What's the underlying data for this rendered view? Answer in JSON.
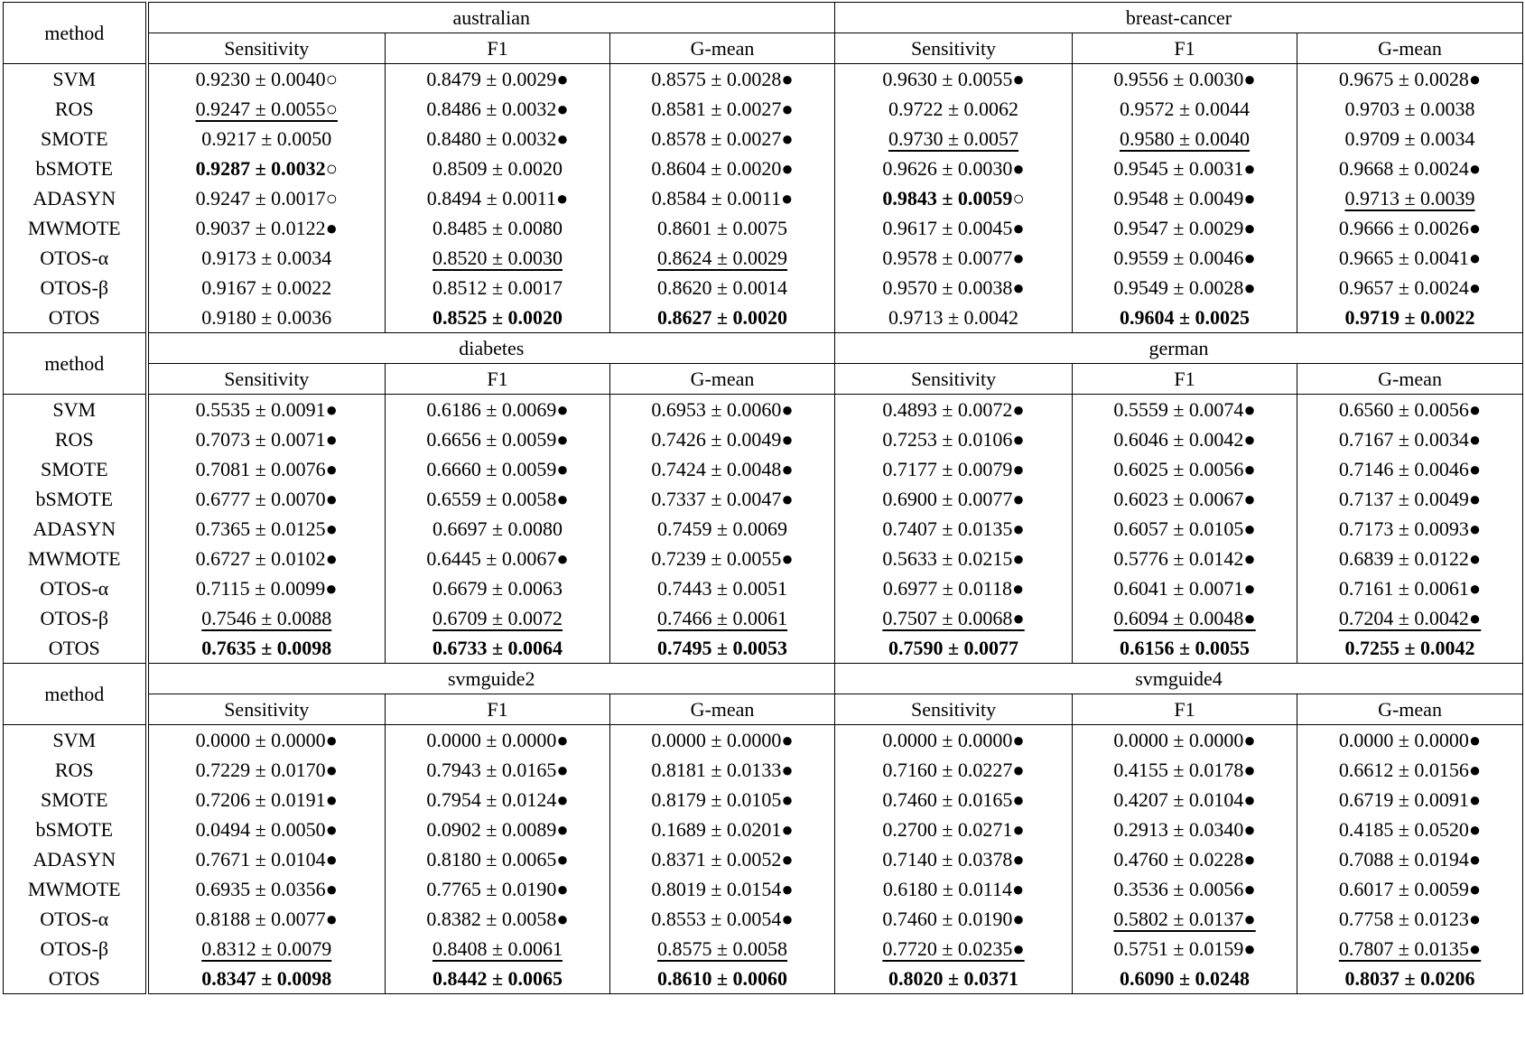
{
  "blocks": [
    {
      "method_header": "method",
      "datasets": [
        "australian",
        "breast-cancer"
      ],
      "metrics": [
        "Sensitivity",
        "F1",
        "G-mean",
        "Sensitivity",
        "F1",
        "G-mean"
      ],
      "rows": [
        {
          "method": "SVM",
          "cells": [
            "0.9230 ± 0.0040○",
            "0.8479 ± 0.0029●",
            "0.8575 ± 0.0028●",
            "0.9630 ± 0.0055●",
            "0.9556 ± 0.0030●",
            "0.9675 ± 0.0028●"
          ]
        },
        {
          "method": "ROS",
          "cells": [
            {
              "text": "0.9247 ± 0.0055○",
              "style": "underline"
            },
            "0.8486 ± 0.0032●",
            "0.8581 ± 0.0027●",
            "0.9722 ± 0.0062",
            "0.9572 ± 0.0044",
            "0.9703 ± 0.0038"
          ]
        },
        {
          "method": "SMOTE",
          "cells": [
            "0.9217 ± 0.0050",
            "0.8480 ± 0.0032●",
            "0.8578 ± 0.0027●",
            {
              "text": "0.9730 ± 0.0057",
              "style": "underline"
            },
            {
              "text": "0.9580 ± 0.0040",
              "style": "underline"
            },
            "0.9709 ± 0.0034"
          ]
        },
        {
          "method": "bSMOTE",
          "cells": [
            {
              "text": "0.9287 ± 0.0032○",
              "style": "bold"
            },
            "0.8509 ± 0.0020",
            "0.8604 ± 0.0020●",
            "0.9626 ± 0.0030●",
            "0.9545 ± 0.0031●",
            "0.9668 ± 0.0024●"
          ]
        },
        {
          "method": "ADASYN",
          "cells": [
            "0.9247 ± 0.0017○",
            "0.8494 ± 0.0011●",
            "0.8584 ± 0.0011●",
            {
              "text": "0.9843 ± 0.0059○",
              "style": "bold"
            },
            "0.9548 ± 0.0049●",
            {
              "text": "0.9713 ± 0.0039",
              "style": "underline"
            }
          ]
        },
        {
          "method": "MWMOTE",
          "cells": [
            "0.9037 ± 0.0122●",
            "0.8485 ± 0.0080",
            "0.8601 ± 0.0075",
            "0.9617 ± 0.0045●",
            "0.9547 ± 0.0029●",
            "0.9666 ± 0.0026●"
          ]
        },
        {
          "method": "OTOS-α",
          "cells": [
            "0.9173 ± 0.0034",
            {
              "text": "0.8520 ± 0.0030",
              "style": "underline"
            },
            {
              "text": "0.8624 ± 0.0029",
              "style": "underline"
            },
            "0.9578 ± 0.0077●",
            "0.9559 ± 0.0046●",
            "0.9665 ± 0.0041●"
          ]
        },
        {
          "method": "OTOS-β",
          "cells": [
            "0.9167 ± 0.0022",
            "0.8512 ± 0.0017",
            "0.8620 ± 0.0014",
            "0.9570 ± 0.0038●",
            "0.9549 ± 0.0028●",
            "0.9657 ± 0.0024●"
          ]
        },
        {
          "method": "OTOS",
          "cells": [
            "0.9180 ± 0.0036",
            {
              "text": "0.8525 ± 0.0020",
              "style": "bold"
            },
            {
              "text": "0.8627 ± 0.0020",
              "style": "bold"
            },
            "0.9713 ± 0.0042",
            {
              "text": "0.9604 ± 0.0025",
              "style": "bold"
            },
            {
              "text": "0.9719 ± 0.0022",
              "style": "bold"
            }
          ]
        }
      ]
    },
    {
      "method_header": "method",
      "datasets": [
        "diabetes",
        "german"
      ],
      "metrics": [
        "Sensitivity",
        "F1",
        "G-mean",
        "Sensitivity",
        "F1",
        "G-mean"
      ],
      "rows": [
        {
          "method": "SVM",
          "cells": [
            "0.5535 ± 0.0091●",
            "0.6186 ± 0.0069●",
            "0.6953 ± 0.0060●",
            "0.4893 ± 0.0072●",
            "0.5559 ± 0.0074●",
            "0.6560 ± 0.0056●"
          ]
        },
        {
          "method": "ROS",
          "cells": [
            "0.7073 ± 0.0071●",
            "0.6656 ± 0.0059●",
            "0.7426 ± 0.0049●",
            "0.7253 ± 0.0106●",
            "0.6046 ± 0.0042●",
            "0.7167 ± 0.0034●"
          ]
        },
        {
          "method": "SMOTE",
          "cells": [
            "0.7081 ± 0.0076●",
            "0.6660 ± 0.0059●",
            "0.7424 ± 0.0048●",
            "0.7177 ± 0.0079●",
            "0.6025 ± 0.0056●",
            "0.7146 ± 0.0046●"
          ]
        },
        {
          "method": "bSMOTE",
          "cells": [
            "0.6777 ± 0.0070●",
            "0.6559 ± 0.0058●",
            "0.7337 ± 0.0047●",
            "0.6900 ± 0.0077●",
            "0.6023 ± 0.0067●",
            "0.7137 ± 0.0049●"
          ]
        },
        {
          "method": "ADASYN",
          "cells": [
            "0.7365 ± 0.0125●",
            "0.6697 ± 0.0080",
            "0.7459 ± 0.0069",
            "0.7407 ± 0.0135●",
            "0.6057 ± 0.0105●",
            "0.7173 ± 0.0093●"
          ]
        },
        {
          "method": "MWMOTE",
          "cells": [
            "0.6727 ± 0.0102●",
            "0.6445 ± 0.0067●",
            "0.7239 ± 0.0055●",
            "0.5633 ± 0.0215●",
            "0.5776 ± 0.0142●",
            "0.6839 ± 0.0122●"
          ]
        },
        {
          "method": "OTOS-α",
          "cells": [
            "0.7115 ± 0.0099●",
            "0.6679 ± 0.0063",
            "0.7443 ± 0.0051",
            "0.6977 ± 0.0118●",
            "0.6041 ± 0.0071●",
            "0.7161 ± 0.0061●"
          ]
        },
        {
          "method": "OTOS-β",
          "cells": [
            {
              "text": "0.7546 ± 0.0088",
              "style": "underline"
            },
            {
              "text": "0.6709 ± 0.0072",
              "style": "underline"
            },
            {
              "text": "0.7466 ± 0.0061",
              "style": "underline"
            },
            {
              "text": "0.7507 ± 0.0068●",
              "style": "underline"
            },
            {
              "text": "0.6094 ± 0.0048●",
              "style": "underline"
            },
            {
              "text": "0.7204 ± 0.0042●",
              "style": "underline"
            }
          ]
        },
        {
          "method": "OTOS",
          "cells": [
            {
              "text": "0.7635 ± 0.0098",
              "style": "bold"
            },
            {
              "text": "0.6733 ± 0.0064",
              "style": "bold"
            },
            {
              "text": "0.7495 ± 0.0053",
              "style": "bold"
            },
            {
              "text": "0.7590 ± 0.0077",
              "style": "bold"
            },
            {
              "text": "0.6156 ± 0.0055",
              "style": "bold"
            },
            {
              "text": "0.7255 ± 0.0042",
              "style": "bold"
            }
          ]
        }
      ]
    },
    {
      "method_header": "method",
      "datasets": [
        "svmguide2",
        "svmguide4"
      ],
      "metrics": [
        "Sensitivity",
        "F1",
        "G-mean",
        "Sensitivity",
        "F1",
        "G-mean"
      ],
      "rows": [
        {
          "method": "SVM",
          "cells": [
            "0.0000 ± 0.0000●",
            "0.0000 ± 0.0000●",
            "0.0000 ± 0.0000●",
            "0.0000 ± 0.0000●",
            "0.0000 ± 0.0000●",
            "0.0000 ± 0.0000●"
          ]
        },
        {
          "method": "ROS",
          "cells": [
            "0.7229 ± 0.0170●",
            "0.7943 ± 0.0165●",
            "0.8181 ± 0.0133●",
            "0.7160 ± 0.0227●",
            "0.4155 ± 0.0178●",
            "0.6612 ± 0.0156●"
          ]
        },
        {
          "method": "SMOTE",
          "cells": [
            "0.7206 ± 0.0191●",
            "0.7954 ± 0.0124●",
            "0.8179 ± 0.0105●",
            "0.7460 ± 0.0165●",
            "0.4207 ± 0.0104●",
            "0.6719 ± 0.0091●"
          ]
        },
        {
          "method": "bSMOTE",
          "cells": [
            "0.0494 ± 0.0050●",
            "0.0902 ± 0.0089●",
            "0.1689 ± 0.0201●",
            "0.2700 ± 0.0271●",
            "0.2913 ± 0.0340●",
            "0.4185 ± 0.0520●"
          ]
        },
        {
          "method": "ADASYN",
          "cells": [
            "0.7671 ± 0.0104●",
            "0.8180 ± 0.0065●",
            "0.8371 ± 0.0052●",
            "0.7140 ± 0.0378●",
            "0.4760 ± 0.0228●",
            "0.7088 ± 0.0194●"
          ]
        },
        {
          "method": "MWMOTE",
          "cells": [
            "0.6935 ± 0.0356●",
            "0.7765 ± 0.0190●",
            "0.8019 ± 0.0154●",
            "0.6180 ± 0.0114●",
            "0.3536 ± 0.0056●",
            "0.6017 ± 0.0059●"
          ]
        },
        {
          "method": "OTOS-α",
          "cells": [
            "0.8188 ± 0.0077●",
            "0.8382 ± 0.0058●",
            "0.8553 ± 0.0054●",
            "0.7460 ± 0.0190●",
            {
              "text": "0.5802 ± 0.0137●",
              "style": "underline"
            },
            "0.7758 ± 0.0123●"
          ]
        },
        {
          "method": "OTOS-β",
          "cells": [
            {
              "text": "0.8312 ± 0.0079",
              "style": "underline"
            },
            {
              "text": "0.8408 ± 0.0061",
              "style": "underline"
            },
            {
              "text": "0.8575 ± 0.0058",
              "style": "underline"
            },
            {
              "text": "0.7720 ± 0.0235●",
              "style": "underline"
            },
            "0.5751 ± 0.0159●",
            {
              "text": "0.7807 ± 0.0135●",
              "style": "underline"
            }
          ]
        },
        {
          "method": "OTOS",
          "cells": [
            {
              "text": "0.8347 ± 0.0098",
              "style": "bold"
            },
            {
              "text": "0.8442 ± 0.0065",
              "style": "bold"
            },
            {
              "text": "0.8610 ± 0.0060",
              "style": "bold"
            },
            {
              "text": "0.8020 ± 0.0371",
              "style": "bold"
            },
            {
              "text": "0.6090 ± 0.0248",
              "style": "bold"
            },
            {
              "text": "0.8037 ± 0.0206",
              "style": "bold"
            }
          ]
        }
      ]
    }
  ]
}
